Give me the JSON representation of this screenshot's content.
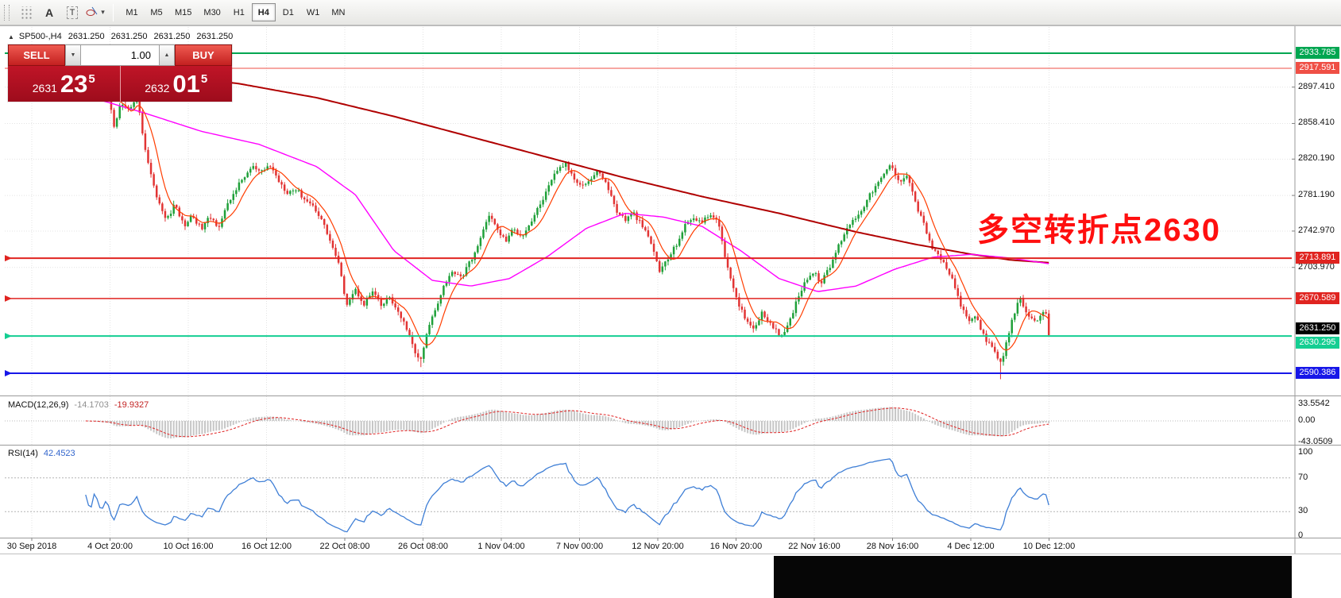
{
  "toolbar": {
    "tools": {
      "a_label": "A",
      "t_label": "T",
      "caret": "▾"
    },
    "timeframes": [
      "M1",
      "M5",
      "M15",
      "M30",
      "H1",
      "H4",
      "D1",
      "W1",
      "MN"
    ],
    "active_timeframe": "H4"
  },
  "window": {
    "collapse_arrow": "▲",
    "ohlc_header": {
      "symbol_period": "SP500-,H4",
      "open": "2631.250",
      "high": "2631.250",
      "low": "2631.250",
      "close": "2631.250"
    },
    "trade": {
      "sell_label": "SELL",
      "buy_label": "BUY",
      "volume": "1.00",
      "spin_down": "▼",
      "spin_up": "▲",
      "bid_prefix": "2631",
      "bid_pips": "23",
      "bid_sup": "5",
      "ask_prefix": "2632",
      "ask_pips": "01",
      "ask_sup": "5"
    },
    "annotation": {
      "text": "多空转折点2630",
      "color": "#ff0f0f"
    }
  },
  "price_axis": {
    "plain_labels": [
      {
        "text": "2897.410",
        "price": 2897.41
      },
      {
        "text": "2858.410",
        "price": 2858.41
      },
      {
        "text": "2820.190",
        "price": 2820.19
      },
      {
        "text": "2781.190",
        "price": 2781.19
      },
      {
        "text": "2742.970",
        "price": 2742.97
      },
      {
        "text": "2703.970",
        "price": 2703.97
      }
    ],
    "colored_labels": [
      {
        "text": "2933.785",
        "price": 2933.785,
        "bg": "#00a651",
        "nudge": 0
      },
      {
        "text": "2917.591",
        "price": 2917.591,
        "bg": "#ef4f45",
        "nudge": 0
      },
      {
        "text": "2713.891",
        "price": 2713.891,
        "bg": "#e02420",
        "nudge": 0
      },
      {
        "text": "2670.589",
        "price": 2670.589,
        "bg": "#e02420",
        "nudge": 0
      },
      {
        "text": "2631.250",
        "price": 2631.25,
        "bg": "#000000",
        "nudge": -8
      },
      {
        "text": "2630.295",
        "price": 2630.295,
        "bg": "#14ce92",
        "nudge": 9
      },
      {
        "text": "2590.386",
        "price": 2590.386,
        "bg": "#1717e8",
        "nudge": 0
      }
    ]
  },
  "time_axis": {
    "labels": [
      "30 Sep 2018",
      "4 Oct 20:00",
      "10 Oct 16:00",
      "16 Oct 12:00",
      "22 Oct 08:00",
      "26 Oct 08:00",
      "1 Nov 04:00",
      "7 Nov 00:00",
      "12 Nov 20:00",
      "16 Nov 20:00",
      "22 Nov 16:00",
      "28 Nov 16:00",
      "4 Dec 12:00",
      "10 Dec 12:00"
    ]
  },
  "panels": {
    "macd": {
      "label": "MACD(12,26,9)",
      "value_main": "-14.1703",
      "value_signal": "-19.9327",
      "axis_labels": [
        "33.5542",
        "0.00",
        "-43.0509"
      ]
    },
    "rsi": {
      "label": "RSI(14)",
      "value": "42.4523",
      "axis_labels": [
        "100",
        "70",
        "30",
        "0"
      ]
    }
  },
  "chart_data": {
    "type": "candlestick",
    "symbol": "SP500-",
    "period": "H4",
    "visible_price_range": [
      2565,
      2963
    ],
    "candle_count": 340,
    "current_bid": 2631.25,
    "hlines": [
      {
        "price": 2933.785,
        "color": "#00a651",
        "width": 2,
        "marker": false
      },
      {
        "price": 2917.591,
        "color": "#ef4f45",
        "width": 1,
        "marker": false
      },
      {
        "price": 2713.891,
        "color": "#e02420",
        "width": 2,
        "marker": true
      },
      {
        "price": 2670.589,
        "color": "#e02420",
        "width": 1.6,
        "marker": true
      },
      {
        "price": 2630.295,
        "color": "#14ce92",
        "width": 2,
        "marker": true
      },
      {
        "price": 2590.386,
        "color": "#1717e8",
        "width": 2,
        "marker": true
      }
    ],
    "close_path": [
      [
        0.0,
        2912
      ],
      [
        0.005,
        2898
      ],
      [
        0.01,
        2916
      ],
      [
        0.016,
        2890
      ],
      [
        0.022,
        2908
      ],
      [
        0.029,
        2852
      ],
      [
        0.036,
        2878
      ],
      [
        0.044,
        2872
      ],
      [
        0.053,
        2888
      ],
      [
        0.062,
        2830
      ],
      [
        0.071,
        2790
      ],
      [
        0.08,
        2762
      ],
      [
        0.084,
        2755
      ],
      [
        0.093,
        2772
      ],
      [
        0.102,
        2748
      ],
      [
        0.111,
        2760
      ],
      [
        0.12,
        2745
      ],
      [
        0.129,
        2758
      ],
      [
        0.138,
        2748
      ],
      [
        0.147,
        2770
      ],
      [
        0.156,
        2788
      ],
      [
        0.164,
        2800
      ],
      [
        0.173,
        2812
      ],
      [
        0.182,
        2805
      ],
      [
        0.191,
        2814
      ],
      [
        0.2,
        2798
      ],
      [
        0.209,
        2785
      ],
      [
        0.218,
        2788
      ],
      [
        0.227,
        2778
      ],
      [
        0.236,
        2770
      ],
      [
        0.244,
        2758
      ],
      [
        0.253,
        2735
      ],
      [
        0.262,
        2710
      ],
      [
        0.271,
        2665
      ],
      [
        0.28,
        2680
      ],
      [
        0.289,
        2665
      ],
      [
        0.298,
        2678
      ],
      [
        0.307,
        2662
      ],
      [
        0.316,
        2672
      ],
      [
        0.324,
        2655
      ],
      [
        0.333,
        2640
      ],
      [
        0.342,
        2612
      ],
      [
        0.348,
        2604
      ],
      [
        0.356,
        2640
      ],
      [
        0.364,
        2662
      ],
      [
        0.373,
        2688
      ],
      [
        0.382,
        2700
      ],
      [
        0.391,
        2694
      ],
      [
        0.4,
        2712
      ],
      [
        0.409,
        2730
      ],
      [
        0.418,
        2762
      ],
      [
        0.427,
        2745
      ],
      [
        0.436,
        2732
      ],
      [
        0.444,
        2745
      ],
      [
        0.453,
        2738
      ],
      [
        0.462,
        2752
      ],
      [
        0.471,
        2770
      ],
      [
        0.48,
        2788
      ],
      [
        0.489,
        2808
      ],
      [
        0.498,
        2815
      ],
      [
        0.507,
        2800
      ],
      [
        0.516,
        2792
      ],
      [
        0.524,
        2798
      ],
      [
        0.533,
        2808
      ],
      [
        0.542,
        2790
      ],
      [
        0.551,
        2765
      ],
      [
        0.56,
        2755
      ],
      [
        0.569,
        2762
      ],
      [
        0.578,
        2748
      ],
      [
        0.587,
        2730
      ],
      [
        0.596,
        2700
      ],
      [
        0.604,
        2712
      ],
      [
        0.613,
        2728
      ],
      [
        0.622,
        2748
      ],
      [
        0.631,
        2758
      ],
      [
        0.64,
        2752
      ],
      [
        0.649,
        2762
      ],
      [
        0.658,
        2748
      ],
      [
        0.667,
        2700
      ],
      [
        0.676,
        2668
      ],
      [
        0.684,
        2652
      ],
      [
        0.693,
        2638
      ],
      [
        0.702,
        2655
      ],
      [
        0.711,
        2645
      ],
      [
        0.72,
        2630
      ],
      [
        0.729,
        2640
      ],
      [
        0.738,
        2668
      ],
      [
        0.747,
        2690
      ],
      [
        0.756,
        2698
      ],
      [
        0.764,
        2688
      ],
      [
        0.773,
        2705
      ],
      [
        0.782,
        2728
      ],
      [
        0.791,
        2748
      ],
      [
        0.8,
        2758
      ],
      [
        0.809,
        2772
      ],
      [
        0.818,
        2788
      ],
      [
        0.827,
        2800
      ],
      [
        0.836,
        2815
      ],
      [
        0.844,
        2795
      ],
      [
        0.853,
        2805
      ],
      [
        0.862,
        2772
      ],
      [
        0.871,
        2748
      ],
      [
        0.88,
        2722
      ],
      [
        0.889,
        2712
      ],
      [
        0.898,
        2695
      ],
      [
        0.907,
        2668
      ],
      [
        0.916,
        2645
      ],
      [
        0.924,
        2652
      ],
      [
        0.933,
        2630
      ],
      [
        0.942,
        2615
      ],
      [
        0.951,
        2600
      ],
      [
        0.96,
        2640
      ],
      [
        0.969,
        2672
      ],
      [
        0.978,
        2655
      ],
      [
        0.987,
        2642
      ],
      [
        0.996,
        2660
      ],
      [
        1.0,
        2631
      ]
    ],
    "low_spikes": [
      {
        "t": 0.348,
        "low": 2597
      },
      {
        "t": 0.951,
        "low": 2584
      }
    ],
    "ma_slow_path": [
      [
        0.0,
        2916
      ],
      [
        0.08,
        2911
      ],
      [
        0.16,
        2901
      ],
      [
        0.24,
        2886
      ],
      [
        0.32,
        2866
      ],
      [
        0.4,
        2844
      ],
      [
        0.48,
        2822
      ],
      [
        0.56,
        2800
      ],
      [
        0.64,
        2780
      ],
      [
        0.72,
        2762
      ],
      [
        0.8,
        2742
      ],
      [
        0.86,
        2729
      ],
      [
        0.92,
        2718
      ],
      [
        0.96,
        2712
      ],
      [
        1.0,
        2709
      ]
    ],
    "ma_mid_path": [
      [
        0.0,
        2888
      ],
      [
        0.06,
        2870
      ],
      [
        0.12,
        2850
      ],
      [
        0.18,
        2836
      ],
      [
        0.24,
        2812
      ],
      [
        0.28,
        2782
      ],
      [
        0.32,
        2722
      ],
      [
        0.36,
        2690
      ],
      [
        0.4,
        2684
      ],
      [
        0.44,
        2692
      ],
      [
        0.48,
        2716
      ],
      [
        0.52,
        2746
      ],
      [
        0.56,
        2762
      ],
      [
        0.6,
        2758
      ],
      [
        0.64,
        2748
      ],
      [
        0.68,
        2722
      ],
      [
        0.72,
        2692
      ],
      [
        0.76,
        2678
      ],
      [
        0.8,
        2684
      ],
      [
        0.84,
        2702
      ],
      [
        0.88,
        2715
      ],
      [
        0.92,
        2718
      ],
      [
        0.96,
        2714
      ],
      [
        1.0,
        2708
      ]
    ],
    "ma_fast_window": 8,
    "indicators": {
      "macd": {
        "fast": 12,
        "slow": 26,
        "signal": 9
      },
      "rsi": {
        "period": 14,
        "levels": [
          70,
          30
        ]
      }
    },
    "colors": {
      "up": "#1fa039",
      "down": "#e23434",
      "ma_fast": "#ff3d00",
      "ma_mid": "#ff00ff",
      "ma_slow": "#b00000",
      "macd_hist": "#c6c6c6",
      "macd_signal": "#e02020",
      "rsi": "#3f7fd6",
      "grid": "#e3e3e3",
      "level_dots": "#b4b4b4"
    }
  }
}
